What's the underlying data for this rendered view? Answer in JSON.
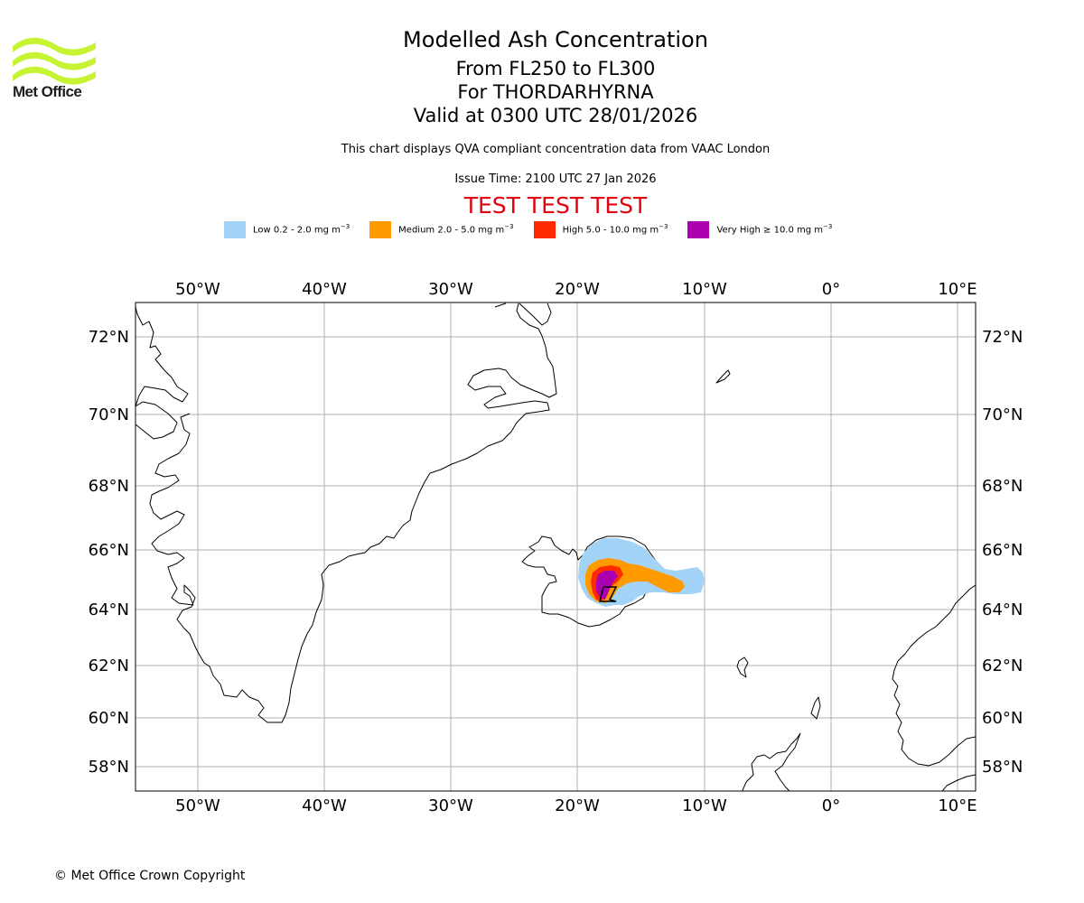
{
  "header": {
    "logo_text": "Met Office",
    "title": "Modelled Ash Concentration",
    "level_range": "From FL250 to FL300",
    "volcano": "For THORDARHYRNA",
    "validity": "Valid at 0300 UTC 28/01/2026",
    "description": "This chart displays QVA compliant concentration data from VAAC London",
    "issue_time": "Issue Time: 2100 UTC 27 Jan 2026",
    "test_banner": "TEST TEST TEST"
  },
  "legend": [
    {
      "label": "Low 0.2 - 2.0 mg m",
      "exponent": "−3",
      "color": "#a3d4f7"
    },
    {
      "label": "Medium 2.0 - 5.0 mg m",
      "exponent": "−3",
      "color": "#ff9a00"
    },
    {
      "label": "High 5.0 - 10.0 mg m",
      "exponent": "−3",
      "color": "#ff2a00"
    },
    {
      "label": "Very High  ≥  10.0 mg m",
      "exponent": "−3",
      "color": "#aa00b0"
    }
  ],
  "map": {
    "lon_labels": [
      "50°W",
      "40°W",
      "30°W",
      "20°W",
      "10°W",
      "0°",
      "10°E"
    ],
    "lat_labels": [
      "72°N",
      "70°N",
      "68°N",
      "66°N",
      "64°N",
      "62°N",
      "60°N",
      "58°N"
    ],
    "lon_range": [
      -55,
      11
    ],
    "lat_range": [
      57.2,
      72.9
    ],
    "frame_color": "#000000",
    "grid_color": "#b0b0b0",
    "coast_color": "#000000",
    "volcano_marker": "volcano-triangle"
  },
  "footer": {
    "copyright": "© Met Office Crown Copyright"
  }
}
